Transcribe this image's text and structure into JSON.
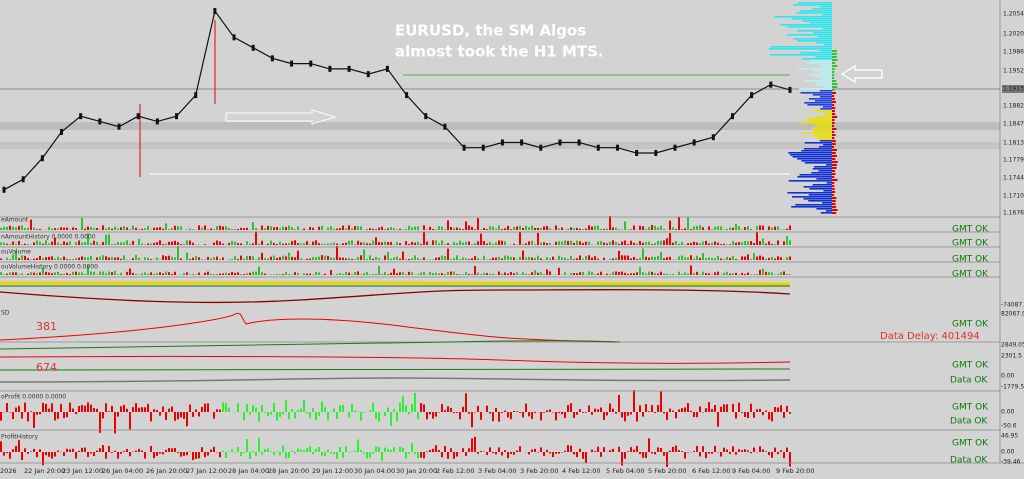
{
  "annotation": {
    "line1": "EURUSD, the SM Algos",
    "line2": "almost took the H1 MTS."
  },
  "price_chart": {
    "ylim": [
      1.1672,
      1.2081
    ],
    "values": [
      1.172,
      1.174,
      1.178,
      1.183,
      1.186,
      1.185,
      1.184,
      1.186,
      1.185,
      1.186,
      1.19,
      1.206,
      1.201,
      1.199,
      1.197,
      1.196,
      1.196,
      1.195,
      1.195,
      1.194,
      1.195,
      1.19,
      1.186,
      1.184,
      1.18,
      1.18,
      1.181,
      1.181,
      1.18,
      1.181,
      1.181,
      1.18,
      1.18,
      1.179,
      1.179,
      1.18,
      1.181,
      1.182,
      1.186,
      1.19,
      1.192,
      1.191
    ]
  },
  "price_axis": [
    "1.20540",
    "1.20200",
    "1.19860",
    "1.19520",
    "1.19136",
    "1.18820",
    "1.18470",
    "1.18130",
    "1.17790",
    "1.17440",
    "1.17100",
    "1.16760"
  ],
  "time_axis": [
    "2026",
    "22 Jan 20:00",
    "23 Jan 12:00",
    "26 Jan 04:00",
    "26 Jan 20:00",
    "27 Jan 12:00",
    "28 Jan 04:00",
    "28 Jan 20:00",
    "29 Jan 12:00",
    "30 Jan 04:00",
    "30 Jan 20:00",
    "2 Feb 12:00",
    "3 Feb 04:00",
    "3 Feb 20:00",
    "4 Feb 12:00",
    "5 Feb 04:00",
    "5 Feb 20:00",
    "6 Feb 12:00",
    "9 Feb 04:00",
    "9 Feb 20:00"
  ],
  "indicator_labels": [
    "eAmount",
    "nAmountHistory 0.0000 0.0000",
    "ouVolume",
    "ouVolumeHistory 0.0000 0.0000",
    "SD",
    "oProfit 0.0000 0.0000",
    "ProfitHistory"
  ],
  "status": [
    "GMT OK",
    "GMT OK",
    "GMT OK",
    "GMT OK",
    "GMT OK",
    "GMT OK",
    "GMT OK",
    "GMT OK"
  ],
  "data_status": [
    "Data OK",
    "Data OK",
    "Data OK"
  ],
  "data_delay": "Data Delay: 401494",
  "counters": [
    "381",
    "674"
  ],
  "sub_scale": [
    "-74087.6",
    "82067.95",
    "2849.05",
    "2301.5",
    "0.00",
    "-1779.5",
    "0.00",
    "-50.6",
    "46.95",
    "0.00",
    "-39.46"
  ]
}
